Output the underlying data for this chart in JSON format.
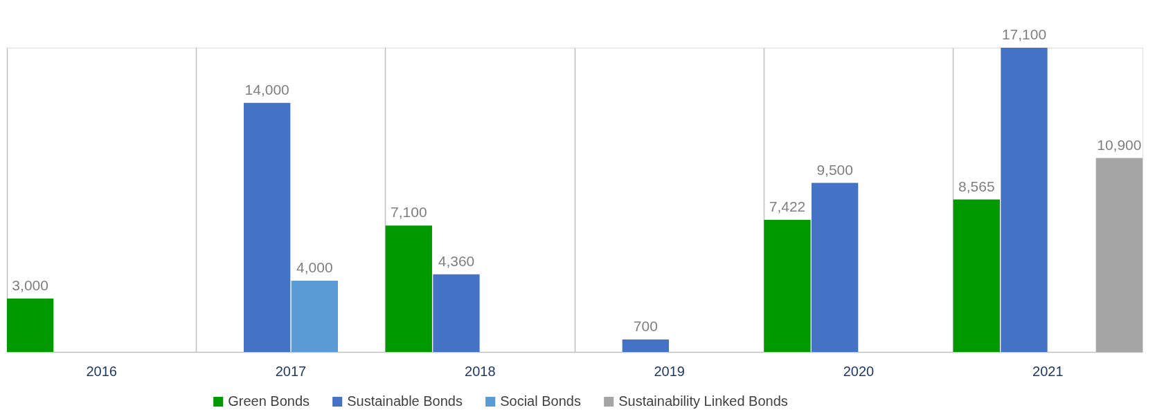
{
  "chart_data": {
    "type": "bar",
    "categories": [
      "2016",
      "2017",
      "2018",
      "2019",
      "2020",
      "2021"
    ],
    "series": [
      {
        "name": "Green Bonds",
        "color": "#009900",
        "values": [
          3000,
          null,
          7100,
          null,
          7422,
          8565
        ],
        "value_labels": [
          "3,000",
          null,
          "7,100",
          null,
          "7,422",
          "8,565"
        ]
      },
      {
        "name": "Sustainable Bonds",
        "color": "#4472c4",
        "values": [
          null,
          14000,
          4360,
          700,
          9500,
          17100
        ],
        "value_labels": [
          null,
          "14,000",
          "4,360",
          "700",
          "9,500",
          "17,100"
        ]
      },
      {
        "name": "Social Bonds",
        "color": "#5b9bd5",
        "values": [
          null,
          4000,
          null,
          null,
          null,
          null
        ],
        "value_labels": [
          null,
          "4,000",
          null,
          null,
          null,
          null
        ]
      },
      {
        "name": "Sustainability Linked Bonds",
        "color": "#a5a5a5",
        "values": [
          null,
          null,
          null,
          null,
          null,
          10900
        ],
        "value_labels": [
          null,
          null,
          null,
          null,
          null,
          "10,900"
        ]
      }
    ],
    "grid": "x",
    "legend": "bottom",
    "tick_labels": "x"
  }
}
